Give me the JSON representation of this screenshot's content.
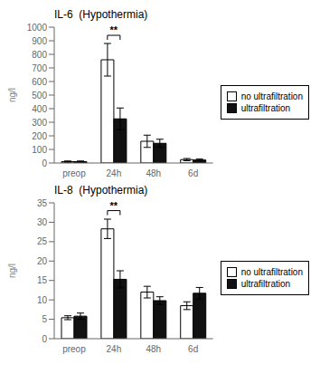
{
  "chart_data": [
    {
      "type": "bar",
      "title": "IL-6  (Hypothermia)",
      "categories": [
        "preop",
        "24h",
        "48h",
        "6d"
      ],
      "series": [
        {
          "name": "no ultrafiltration",
          "color": "#ffffff",
          "values": [
            10,
            760,
            160,
            25
          ],
          "errors": [
            5,
            120,
            45,
            8
          ]
        },
        {
          "name": "ultrafiltration",
          "color": "#111111",
          "values": [
            10,
            325,
            145,
            22
          ],
          "errors": [
            5,
            80,
            30,
            7
          ]
        }
      ],
      "ylabel": "ng/l",
      "ylim": [
        0,
        1000
      ],
      "yticks": [
        0,
        100,
        200,
        300,
        400,
        500,
        600,
        700,
        800,
        900,
        1000
      ],
      "legend": "right",
      "annotations": [
        {
          "text": "**",
          "x": "24h",
          "y": 940
        }
      ]
    },
    {
      "type": "bar",
      "title": "IL-8  (Hypothermia)",
      "categories": [
        "preop",
        "24h",
        "48h",
        "6d"
      ],
      "series": [
        {
          "name": "no ultrafiltration",
          "color": "#ffffff",
          "values": [
            5.4,
            28.3,
            12.0,
            8.5
          ],
          "errors": [
            0.5,
            2.5,
            1.5,
            1.0
          ]
        },
        {
          "name": "ultrafiltration",
          "color": "#111111",
          "values": [
            5.8,
            15.3,
            9.8,
            11.7
          ],
          "errors": [
            0.8,
            2.2,
            1.0,
            1.5
          ]
        }
      ],
      "ylabel": "ng/l",
      "ylim": [
        0,
        35
      ],
      "yticks": [
        0,
        5,
        10,
        15,
        20,
        25,
        30,
        35
      ],
      "legend": "right",
      "annotations": [
        {
          "text": "**",
          "x": "24h",
          "y": 33.0
        }
      ]
    }
  ]
}
